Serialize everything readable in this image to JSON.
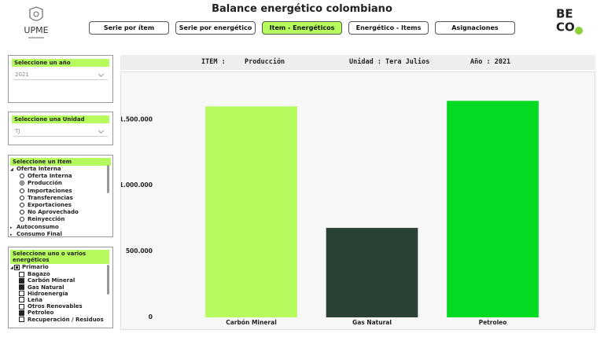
{
  "header": {
    "title": "Balance energético colombiano",
    "logo_left": "UPME",
    "logo_right_top": "BE",
    "logo_right_bottom": "CO"
  },
  "tabs": [
    "Serie por ítem",
    "Serie por energético",
    "Item - Energéticos",
    "Energético - Items",
    "Asignaciones"
  ],
  "active_tab": 2,
  "filters": {
    "year": {
      "label": "Seleccione un año",
      "value": "2021"
    },
    "unit": {
      "label": "Seleccione una Unidad",
      "value": "TJ"
    },
    "item": {
      "label": "Seleccione un Item",
      "groups": [
        {
          "name": "Oferta Interna",
          "expanded": true,
          "selected": 1,
          "options": [
            "Oferta Interna",
            "Producción",
            "Importaciones",
            "Transferencias",
            "Exportaciones",
            "No Aprovechado",
            "Reinyección"
          ]
        },
        {
          "name": "Autoconsumo",
          "expanded": false
        },
        {
          "name": "Consumo Final",
          "expanded": false
        }
      ]
    },
    "energy": {
      "label": "Seleccione uno o varios energéticos",
      "group": "Primario",
      "options": [
        {
          "name": "Bagazo",
          "checked": false
        },
        {
          "name": "Carbón Mineral",
          "checked": true
        },
        {
          "name": "Gas Natural",
          "checked": true
        },
        {
          "name": "Hidroenergía",
          "checked": false
        },
        {
          "name": "Leña",
          "checked": false
        },
        {
          "name": "Otros Renovables",
          "checked": false
        },
        {
          "name": "Petroleo",
          "checked": true
        },
        {
          "name": "Recuperación / Residuos",
          "checked": false
        }
      ]
    }
  },
  "summary": {
    "item_label": "ITEM :",
    "item_value": "Producción",
    "unit": "Unidad : Tera Julios",
    "year": "Año : 2021"
  },
  "chart_data": {
    "type": "bar",
    "categories": [
      "Carbón Mineral",
      "Gas Natural",
      "Petroleo"
    ],
    "values": [
      1601000,
      679000,
      1643000
    ],
    "colors": [
      "#b5fb5d",
      "#2c4136",
      "#03da22"
    ],
    "ylim": [
      0,
      1830000
    ],
    "yticks": [
      0,
      {
        "value": 500000,
        "label": "500.000"
      },
      {
        "value": 1000000,
        "label": "1.000.000"
      },
      {
        "value": 1500000,
        "label": "1.500.000"
      }
    ],
    "grid": false
  }
}
